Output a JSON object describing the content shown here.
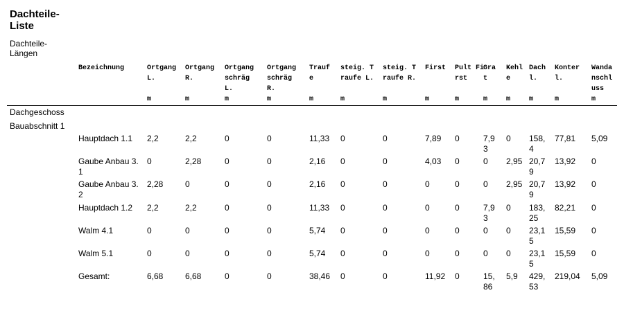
{
  "title": "Dachteile-Liste",
  "subtitle": "Dachteile-Längen",
  "table": {
    "columns": [
      {
        "label": "Bezeichnung",
        "unit": null
      },
      {
        "label": "Ortgang L.",
        "unit": "m"
      },
      {
        "label": "Ortgang R.",
        "unit": "m"
      },
      {
        "label": "Ortgang schräg L.",
        "unit": "m"
      },
      {
        "label": "Ortgang schräg R.",
        "unit": "m"
      },
      {
        "label": "Traufe",
        "unit": "m"
      },
      {
        "label": "steig. Traufe L.",
        "unit": "m"
      },
      {
        "label": "steig. Traufe R.",
        "unit": "m"
      },
      {
        "label": "First",
        "unit": "m"
      },
      {
        "label": "Pult First",
        "unit": "m"
      },
      {
        "label": "Grat",
        "unit": "m"
      },
      {
        "label": "Kehle",
        "unit": "m"
      },
      {
        "label": "Dachl.",
        "unit": "m"
      },
      {
        "label": "Konterl.",
        "unit": "m"
      },
      {
        "label": "Wandanschluss",
        "unit": "m"
      }
    ],
    "group": "Dachgeschoss",
    "subgroup": "Bauabschnitt 1",
    "rows": [
      [
        "Hauptdach 1.1",
        "2,2",
        "2,2",
        "0",
        "0",
        "11,33",
        "0",
        "0",
        "7,89",
        "0",
        "7,93",
        "0",
        "158,4",
        "77,81",
        "5,09"
      ],
      [
        "Gaube Anbau 3.1",
        "0",
        "2,28",
        "0",
        "0",
        "2,16",
        "0",
        "0",
        "4,03",
        "0",
        "0",
        "2,95",
        "20,79",
        "13,92",
        "0"
      ],
      [
        "Gaube Anbau 3.2",
        "2,28",
        "0",
        "0",
        "0",
        "2,16",
        "0",
        "0",
        "0",
        "0",
        "0",
        "2,95",
        "20,79",
        "13,92",
        "0"
      ],
      [
        "Hauptdach 1.2",
        "2,2",
        "2,2",
        "0",
        "0",
        "11,33",
        "0",
        "0",
        "0",
        "0",
        "7,93",
        "0",
        "183,25",
        "82,21",
        "0"
      ],
      [
        "Walm 4.1",
        "0",
        "0",
        "0",
        "0",
        "5,74",
        "0",
        "0",
        "0",
        "0",
        "0",
        "0",
        "23,15",
        "15,59",
        "0"
      ],
      [
        "Walm 5.1",
        "0",
        "0",
        "0",
        "0",
        "5,74",
        "0",
        "0",
        "0",
        "0",
        "0",
        "0",
        "23,15",
        "15,59",
        "0"
      ],
      [
        "Gesamt:",
        "6,68",
        "6,68",
        "0",
        "0",
        "38,46",
        "0",
        "0",
        "11,92",
        "0",
        "15,86",
        "5,9",
        "429,53",
        "219,04",
        "5,09"
      ]
    ]
  }
}
